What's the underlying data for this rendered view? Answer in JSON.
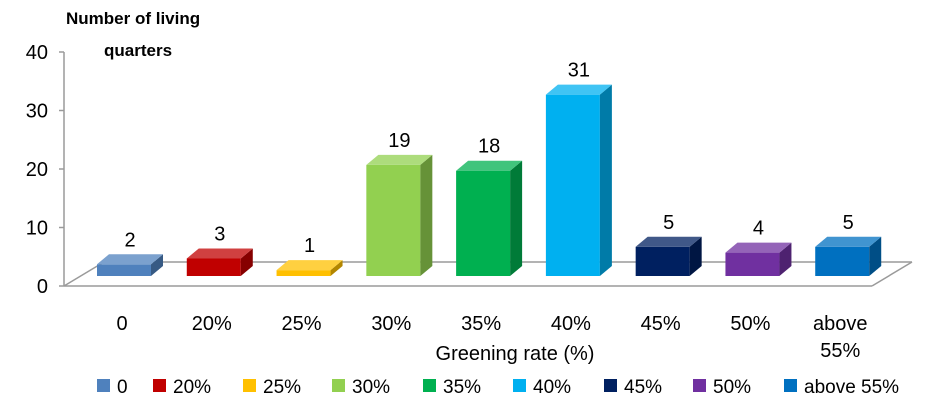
{
  "chart_data": {
    "type": "bar",
    "ylabel": "Number of living quarters",
    "xlabel": "Greening rate  (%)",
    "categories": [
      "0",
      "20%",
      "25%",
      "30%",
      "35%",
      "40%",
      "45%",
      "50%",
      "above 55%"
    ],
    "values": [
      2,
      3,
      1,
      19,
      18,
      31,
      5,
      4,
      5
    ],
    "data_labels": [
      "2",
      "3",
      "1",
      "19",
      "18",
      "31",
      "5",
      "4",
      "5"
    ],
    "colors": [
      "#4f81bd",
      "#c00000",
      "#ffc000",
      "#92d050",
      "#00b050",
      "#00b0f0",
      "#002060",
      "#7030a0",
      "#0070c0"
    ],
    "ylim": [
      0,
      40
    ],
    "yticks": [
      0,
      10,
      20,
      30,
      40
    ],
    "yticks_labels": [
      "0",
      "10",
      "20",
      "30",
      "40"
    ],
    "legend": {
      "position": "bottom",
      "entries": [
        "0",
        "20%",
        "25%",
        "30%",
        "35%",
        "40%",
        "45%",
        "50%",
        "above 55%"
      ]
    },
    "style": "3d-column",
    "grid": false
  }
}
